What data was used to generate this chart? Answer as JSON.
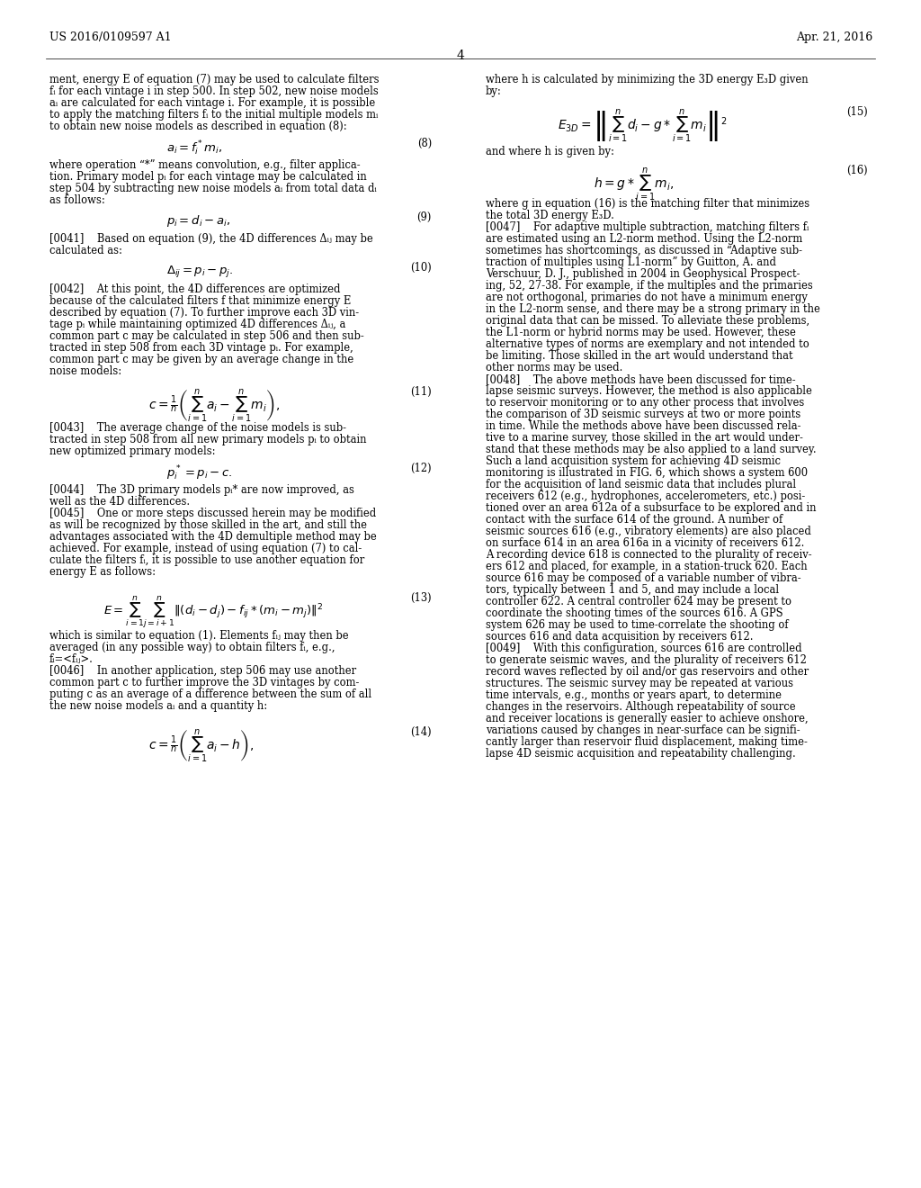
{
  "header_left": "US 2016/0109597 A1",
  "header_right": "Apr. 21, 2016",
  "page_number": "4",
  "background_color": "#ffffff",
  "text_color": "#000000",
  "left_column": {
    "intro_text": "ment, energy E of equation (7) may be used to calculate filters fⁱ for each vintage i in step 500. In step 502, new noise models aᵢ are calculated for each vintage i. For example, it is possible to apply the matching filters fᵢ to the initial multiple models mᵢ to obtain new noise models as described in equation (8):",
    "eq8_latex": "$a_i = f_i^* m_i,$",
    "eq8_num": "(8)",
    "para_after_eq8": "where operation “*” means convolution, e.g., filter application. Primary model pᵢ for each vintage may be calculated in step 504 by subtracting new noise models aᵢ from total data dᵢ as follows:",
    "eq9_latex": "$p_i = d_i - a_i.$",
    "eq9_num": "(9)",
    "para_0041": "[0041]    Based on equation (9), the 4D differences Δᵢⱼ may be calculated as:",
    "eq10_latex": "$\\Delta_{ij} = p_i - p_j.$",
    "eq10_num": "(10)",
    "para_0042": "[0042]    At this point, the 4D differences are optimized because of the calculated filters f that minimize energy E described by equation (7). To further improve each 3D vintage pᵢ while maintaining optimized 4D differences Δᵢⱼ, a common part c may be calculated in step 506 and then subtracted in step 508 from each 3D vintage pᵢ. For example, common part c may be given by an average change in the noise models:",
    "eq11_num": "(11)",
    "para_0043": "[0043]    The average change of the noise models is subtracted in step 508 from all new primary models pᵢ to obtain new optimized primary models:",
    "eq12_latex": "$p_i^* = p_i - c.$",
    "eq12_num": "(12)",
    "para_0044": "[0044]    The 3D primary models pᵢ* are now improved, as well as the 4D differences.",
    "para_0045": "[0045]    One or more steps discussed herein may be modified as will be recognized by those skilled in the art, and still the advantages associated with the 4D demultiple method may be achieved. For example, instead of using equation (7) to calculate the filters fᵢ, it is possible to use another equation for energy E as follows:",
    "eq13_num": "(13)",
    "para_after_eq13": "which is similar to equation (1). Elements fᵢⱼ may then be averaged (in any possible way) to obtain filters fᵢ, e.g., fᵢ=<fᵢⱼ>.",
    "para_0046": "[0046]    In another application, step 506 may use another common part c to further improve the 3D vintages by computing c as an average of a difference between the sum of all the new noise models aᵢ and a quantity h:",
    "eq14_num": "(14)"
  },
  "right_column": {
    "intro_text": "where h is calculated by minimizing the 3D energy E₃D given by:",
    "eq15_num": "(15)",
    "para_after_eq15": "and where h is given by:",
    "eq16_num": "(16)",
    "para_after_eq16": "where g in equation (16) is the matching filter that minimizes the total 3D energy E₃D.",
    "para_0047": "[0047]    For adaptive multiple subtraction, matching filters fᵢ are estimated using an L2-norm method. Using the L2-norm sometimes has shortcomings, as discussed in “Adaptive subtraction of multiples using L1-norm” by Guitton, A. and Verschuur, D. J., published in 2004 in Geophysical Prospecting, 52, 27-38. For example, if the multiples and the primaries are not orthogonal, primaries do not have a minimum energy in the L2-norm sense, and there may be a strong primary in the original data that can be missed. To alleviate these problems, the L1-norm or hybrid norms may be used. However, these alternative types of norms are exemplary and not intended to be limiting. Those skilled in the art would understand that other norms may be used.",
    "para_0048": "[0048]    The above methods have been discussed for time-lapse seismic surveys. However, the method is also applicable to reservoir monitoring or to any other process that involves the comparison of 3D seismic surveys at two or more points in time. While the methods above have been discussed relative to a marine survey, those skilled in the art would understand that these methods may be also applied to a land survey. Such a land acquisition system for achieving 4D seismic monitoring is illustrated in FIG. 6, which shows a system 600 for the acquisition of land seismic data that includes plural receivers 612 (e.g., hydrophones, accelerometers, etc.) positioned over an area 612a of a subsurface to be explored and in contact with the surface 614 of the ground. A number of seismic sources 616 (e.g., vibratory elements) are also placed on surface 614 in an area 616a in a vicinity of receivers 612. A recording device 618 is connected to the plurality of receivers 612 and placed, for example, in a station-truck 620. Each source 616 may be composed of a variable number of vibrators, typically between 1 and 5, and may include a local controller 622. A central controller 624 may be present to coordinate the shooting times of the sources 616. A GPS system 626 may be used to time-correlate the shooting of sources 616 and data acquisition by receivers 612.",
    "para_0049": "[0049]    With this configuration, sources 616 are controlled to generate seismic waves, and the plurality of receivers 612 record waves reflected by oil and/or gas reservoirs and other structures. The seismic survey may be repeated at various time intervals, e.g., months or years apart, to determine changes in the reservoirs. Although repeatability of source and receiver locations is generally easier to achieve onshore, variations caused by changes in near-surface can be significantly larger than reservoir fluid displacement, making time-lapse 4D seismic acquisition and repeatability challenging."
  }
}
